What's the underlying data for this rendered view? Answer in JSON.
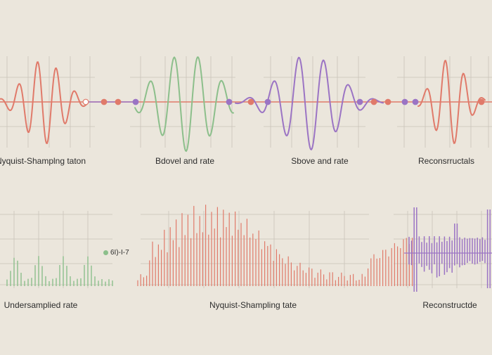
{
  "colors": {
    "background": "#ebe6dc",
    "grid": "#c9c3b8",
    "red": "#e07a6a",
    "green": "#8cbf8b",
    "purple": "#9b74c4",
    "text": "#2d2d2d"
  },
  "top_row": {
    "labels": [
      "Nyquist-Shamplng taton",
      "Bdovel and rate",
      "Sbove and rate",
      "Reconsrructals"
    ]
  },
  "bottom_row": {
    "labels": [
      "Undersamplied rate",
      "Nyquist-Shampling tate",
      "Reconstructde"
    ],
    "note": "6I)-I-7"
  },
  "icons": {
    "sample_marker": "dot-icon"
  }
}
